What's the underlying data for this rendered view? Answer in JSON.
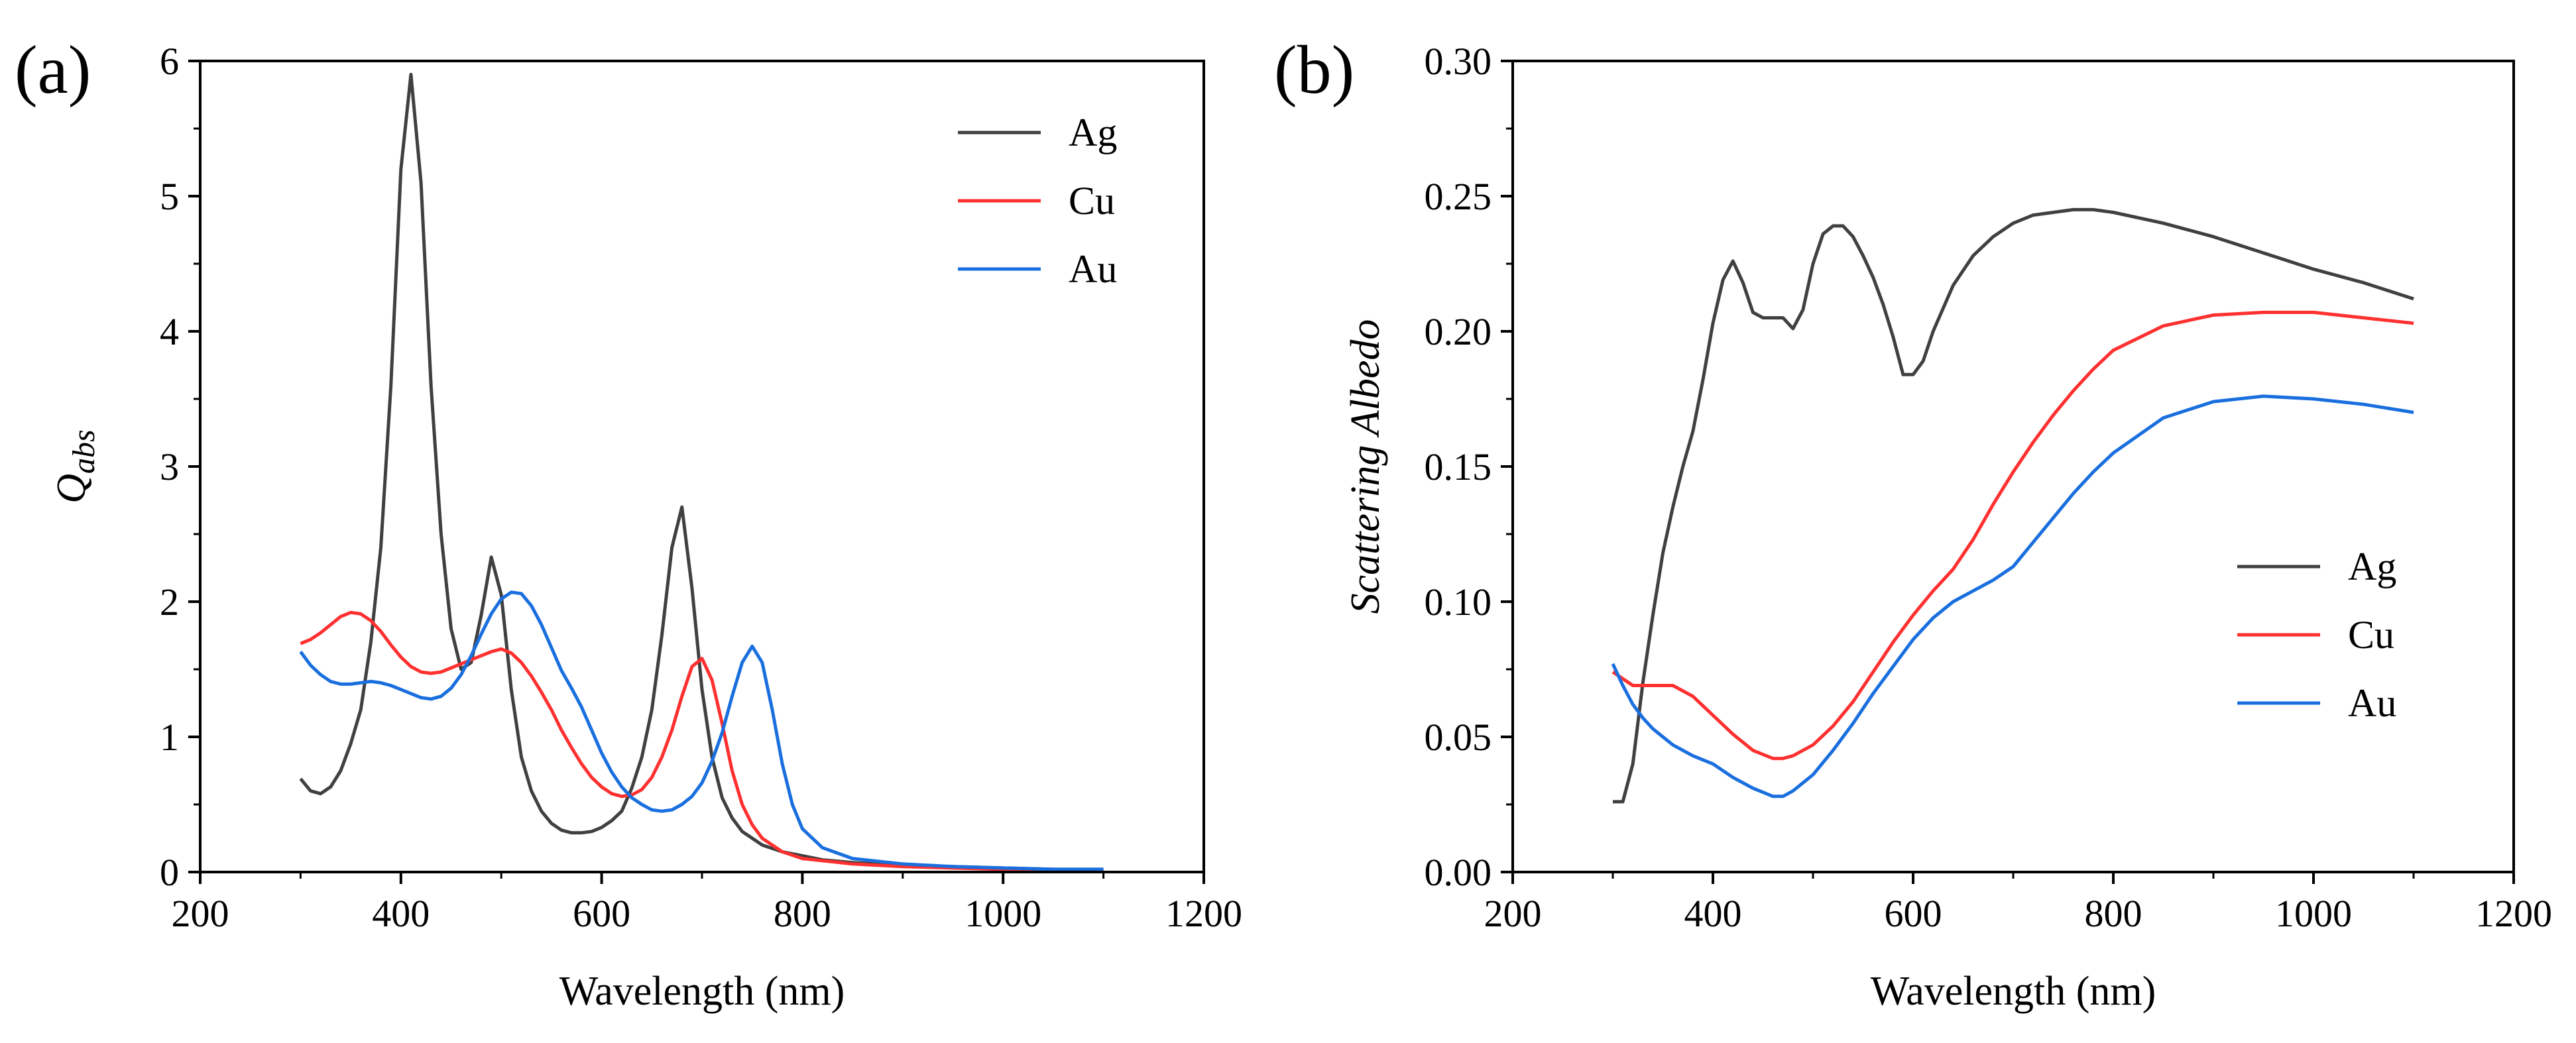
{
  "chart_data": [
    {
      "type": "line",
      "panel_label": "(a)",
      "xlabel": "Wavelength (nm)",
      "ylabel_main": "Q",
      "ylabel_sub": "abs",
      "xlim": [
        200,
        1200
      ],
      "ylim": [
        0,
        6
      ],
      "xticks": [
        200,
        400,
        600,
        800,
        1000,
        1200
      ],
      "yticks": [
        0,
        1,
        2,
        3,
        4,
        5,
        6
      ],
      "ytick_labels": [
        "0",
        "1",
        "2",
        "3",
        "4",
        "5",
        "6"
      ],
      "legend_position": "top-right",
      "series": [
        {
          "name": "Ag",
          "color": "#404040",
          "x": [
            300,
            310,
            320,
            330,
            340,
            350,
            360,
            370,
            380,
            390,
            400,
            410,
            420,
            430,
            440,
            450,
            460,
            470,
            480,
            490,
            500,
            510,
            520,
            530,
            540,
            550,
            560,
            570,
            580,
            590,
            600,
            610,
            620,
            630,
            640,
            650,
            660,
            670,
            680,
            690,
            700,
            710,
            720,
            730,
            740,
            750,
            760,
            780,
            800,
            820,
            850,
            900,
            950,
            1000,
            1050,
            1100
          ],
          "y": [
            0.69,
            0.6,
            0.58,
            0.63,
            0.75,
            0.95,
            1.2,
            1.7,
            2.4,
            3.6,
            5.2,
            5.9,
            5.1,
            3.6,
            2.5,
            1.8,
            1.5,
            1.55,
            1.9,
            2.33,
            2.05,
            1.35,
            0.85,
            0.6,
            0.45,
            0.36,
            0.31,
            0.29,
            0.29,
            0.3,
            0.33,
            0.38,
            0.45,
            0.62,
            0.85,
            1.2,
            1.75,
            2.4,
            2.7,
            2.1,
            1.35,
            0.85,
            0.55,
            0.4,
            0.3,
            0.25,
            0.2,
            0.15,
            0.12,
            0.09,
            0.07,
            0.05,
            0.04,
            0.03,
            0.02,
            0.02
          ]
        },
        {
          "name": "Cu",
          "color": "#ff3030",
          "x": [
            300,
            310,
            320,
            330,
            340,
            350,
            360,
            370,
            380,
            390,
            400,
            410,
            420,
            430,
            440,
            450,
            460,
            470,
            480,
            490,
            500,
            510,
            520,
            530,
            540,
            550,
            560,
            570,
            580,
            590,
            600,
            610,
            620,
            630,
            640,
            650,
            660,
            670,
            680,
            690,
            700,
            710,
            720,
            730,
            740,
            750,
            760,
            780,
            800,
            850,
            900,
            950,
            1000,
            1050,
            1100
          ],
          "y": [
            1.69,
            1.72,
            1.77,
            1.83,
            1.89,
            1.92,
            1.91,
            1.86,
            1.78,
            1.68,
            1.59,
            1.52,
            1.48,
            1.47,
            1.48,
            1.51,
            1.54,
            1.57,
            1.6,
            1.63,
            1.65,
            1.62,
            1.55,
            1.45,
            1.33,
            1.2,
            1.05,
            0.92,
            0.8,
            0.7,
            0.63,
            0.58,
            0.56,
            0.57,
            0.61,
            0.7,
            0.85,
            1.05,
            1.3,
            1.52,
            1.58,
            1.42,
            1.1,
            0.75,
            0.5,
            0.35,
            0.25,
            0.15,
            0.1,
            0.06,
            0.04,
            0.03,
            0.02,
            0.02,
            0.01
          ]
        },
        {
          "name": "Au",
          "color": "#1a6fdf",
          "x": [
            300,
            310,
            320,
            330,
            340,
            350,
            360,
            370,
            380,
            390,
            400,
            410,
            420,
            430,
            440,
            450,
            460,
            470,
            480,
            490,
            500,
            510,
            520,
            530,
            540,
            550,
            560,
            570,
            580,
            590,
            600,
            610,
            620,
            630,
            640,
            650,
            660,
            670,
            680,
            690,
            700,
            710,
            720,
            730,
            740,
            750,
            760,
            770,
            780,
            790,
            800,
            820,
            850,
            900,
            950,
            1000,
            1050,
            1100
          ],
          "y": [
            1.63,
            1.53,
            1.46,
            1.41,
            1.39,
            1.39,
            1.4,
            1.41,
            1.4,
            1.38,
            1.35,
            1.32,
            1.29,
            1.28,
            1.3,
            1.36,
            1.46,
            1.6,
            1.76,
            1.91,
            2.02,
            2.07,
            2.06,
            1.97,
            1.83,
            1.66,
            1.49,
            1.36,
            1.22,
            1.05,
            0.88,
            0.74,
            0.63,
            0.55,
            0.5,
            0.46,
            0.45,
            0.46,
            0.5,
            0.56,
            0.66,
            0.82,
            1.03,
            1.3,
            1.55,
            1.67,
            1.55,
            1.2,
            0.8,
            0.5,
            0.32,
            0.18,
            0.1,
            0.06,
            0.04,
            0.03,
            0.02,
            0.02
          ]
        }
      ]
    },
    {
      "type": "line",
      "panel_label": "(b)",
      "xlabel": "Wavelength (nm)",
      "ylabel": "Scattering Albedo",
      "xlim": [
        200,
        1200
      ],
      "ylim": [
        0,
        0.3
      ],
      "xticks": [
        200,
        400,
        600,
        800,
        1000,
        1200
      ],
      "yticks": [
        0,
        0.05,
        0.1,
        0.15,
        0.2,
        0.25,
        0.3
      ],
      "ytick_labels": [
        "0.00",
        "0.05",
        "0.10",
        "0.15",
        "0.20",
        "0.25",
        "0.30"
      ],
      "legend_position": "center-right",
      "series": [
        {
          "name": "Ag",
          "color": "#404040",
          "x": [
            300,
            310,
            320,
            330,
            340,
            350,
            360,
            370,
            380,
            390,
            400,
            410,
            420,
            430,
            440,
            450,
            460,
            470,
            480,
            490,
            500,
            510,
            520,
            530,
            540,
            550,
            560,
            570,
            580,
            590,
            600,
            610,
            620,
            640,
            660,
            680,
            700,
            720,
            740,
            760,
            780,
            800,
            850,
            900,
            950,
            1000,
            1050,
            1100
          ],
          "y": [
            0.026,
            0.026,
            0.04,
            0.07,
            0.095,
            0.118,
            0.135,
            0.15,
            0.163,
            0.182,
            0.203,
            0.219,
            0.226,
            0.218,
            0.207,
            0.205,
            0.205,
            0.205,
            0.201,
            0.208,
            0.225,
            0.236,
            0.239,
            0.239,
            0.235,
            0.228,
            0.22,
            0.21,
            0.198,
            0.184,
            0.184,
            0.189,
            0.2,
            0.217,
            0.228,
            0.235,
            0.24,
            0.243,
            0.244,
            0.245,
            0.245,
            0.244,
            0.24,
            0.235,
            0.229,
            0.223,
            0.218,
            0.212
          ]
        },
        {
          "name": "Cu",
          "color": "#ff3030",
          "x": [
            300,
            320,
            340,
            360,
            380,
            400,
            420,
            440,
            460,
            470,
            480,
            500,
            520,
            540,
            560,
            580,
            600,
            620,
            640,
            660,
            680,
            700,
            720,
            740,
            760,
            780,
            800,
            850,
            900,
            950,
            1000,
            1050,
            1100
          ],
          "y": [
            0.074,
            0.069,
            0.069,
            0.069,
            0.065,
            0.058,
            0.051,
            0.045,
            0.042,
            0.042,
            0.043,
            0.047,
            0.054,
            0.063,
            0.074,
            0.085,
            0.095,
            0.104,
            0.112,
            0.123,
            0.136,
            0.148,
            0.159,
            0.169,
            0.178,
            0.186,
            0.193,
            0.202,
            0.206,
            0.207,
            0.207,
            0.205,
            0.203
          ]
        },
        {
          "name": "Au",
          "color": "#1a6fdf",
          "x": [
            300,
            310,
            320,
            330,
            340,
            350,
            360,
            380,
            400,
            420,
            440,
            460,
            470,
            480,
            500,
            520,
            540,
            560,
            580,
            600,
            620,
            640,
            660,
            680,
            700,
            720,
            740,
            760,
            780,
            800,
            850,
            900,
            950,
            1000,
            1050,
            1100
          ],
          "y": [
            0.077,
            0.069,
            0.062,
            0.057,
            0.053,
            0.05,
            0.047,
            0.043,
            0.04,
            0.035,
            0.031,
            0.028,
            0.028,
            0.03,
            0.036,
            0.045,
            0.055,
            0.066,
            0.076,
            0.086,
            0.094,
            0.1,
            0.104,
            0.108,
            0.113,
            0.122,
            0.131,
            0.14,
            0.148,
            0.155,
            0.168,
            0.174,
            0.176,
            0.175,
            0.173,
            0.17
          ]
        }
      ]
    }
  ]
}
